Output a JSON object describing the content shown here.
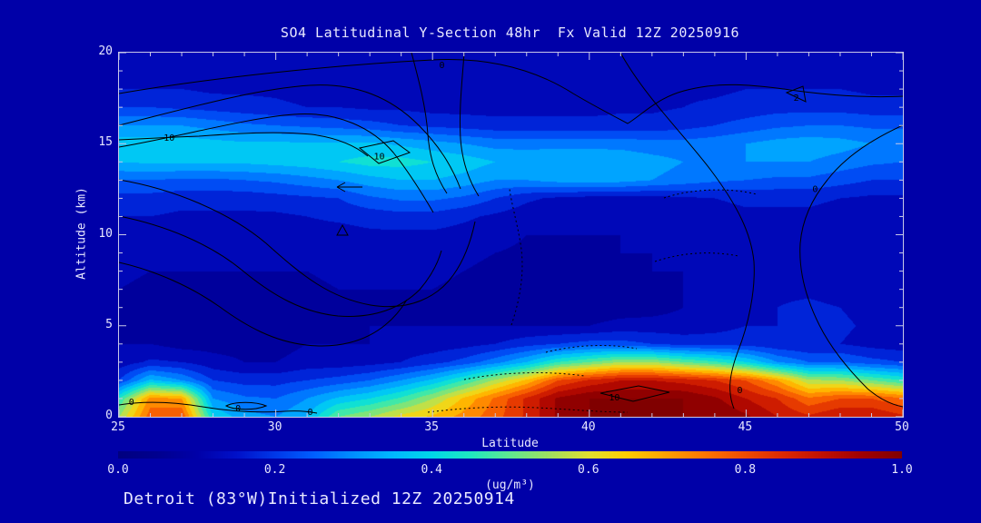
{
  "title": "SO4 Latitudinal Y-Section 48hr  Fx Valid 12Z 20250916",
  "footer": "Detroit (83°W)Initialized 12Z 20250914",
  "axes": {
    "x_label": "Latitude",
    "y_label": "Altitude (km)",
    "x_ticks": [
      25,
      30,
      35,
      40,
      45,
      50
    ],
    "x_minor_step": 1,
    "y_ticks": [
      0,
      5,
      10,
      15,
      20
    ],
    "y_minor_step": 1,
    "frame_color": "#c8c8e8",
    "text_color": "#e8e8ff"
  },
  "colorbar": {
    "label": "(ug/m³)",
    "tick_labels": [
      "0.0",
      "0.2",
      "0.4",
      "0.6",
      "0.8",
      "1.0"
    ],
    "stops": [
      {
        "v": 0.0,
        "c": "#000080"
      },
      {
        "v": 0.05,
        "c": "#00008f"
      },
      {
        "v": 0.1,
        "c": "#0000a8"
      },
      {
        "v": 0.15,
        "c": "#0010c8"
      },
      {
        "v": 0.2,
        "c": "#0038e8"
      },
      {
        "v": 0.25,
        "c": "#0060ff"
      },
      {
        "v": 0.3,
        "c": "#0090ff"
      },
      {
        "v": 0.35,
        "c": "#00b8ff"
      },
      {
        "v": 0.4,
        "c": "#00d8e8"
      },
      {
        "v": 0.45,
        "c": "#20e8c0"
      },
      {
        "v": 0.5,
        "c": "#60e890"
      },
      {
        "v": 0.55,
        "c": "#a0e060"
      },
      {
        "v": 0.6,
        "c": "#e0e030"
      },
      {
        "v": 0.65,
        "c": "#ffcc00"
      },
      {
        "v": 0.7,
        "c": "#ffa000"
      },
      {
        "v": 0.75,
        "c": "#ff7400"
      },
      {
        "v": 0.8,
        "c": "#f04c00"
      },
      {
        "v": 0.85,
        "c": "#dc2800"
      },
      {
        "v": 0.9,
        "c": "#c01000"
      },
      {
        "v": 0.95,
        "c": "#a00000"
      },
      {
        "v": 1.0,
        "c": "#800000"
      }
    ]
  },
  "chart_data": {
    "type": "heatmap",
    "title": "SO4 Latitudinal Y-Section 48hr  Fx Valid 12Z 20250916",
    "xlabel": "Latitude",
    "ylabel": "Altitude (km)",
    "units": "ug/m3",
    "xlim": [
      25,
      50
    ],
    "ylim": [
      0,
      20
    ],
    "zlim": [
      0,
      1
    ],
    "band_step": 0.05,
    "x": [
      25,
      26,
      27,
      28,
      29,
      30,
      31,
      32,
      33,
      34,
      35,
      36,
      37,
      38,
      39,
      40,
      41,
      42,
      43,
      44,
      45,
      46,
      47,
      48,
      49,
      50
    ],
    "y": [
      0,
      1,
      2,
      3,
      4,
      5,
      6,
      7,
      8,
      9,
      10,
      11,
      12,
      13,
      14,
      15,
      16,
      17,
      18,
      19,
      20
    ],
    "values": [
      [
        0.55,
        0.78,
        0.8,
        0.4,
        0.32,
        0.3,
        0.35,
        0.5,
        0.55,
        0.62,
        0.66,
        0.72,
        0.78,
        0.86,
        0.96,
        1.0,
        1.0,
        1.0,
        1.0,
        1.0,
        0.96,
        0.9,
        0.86,
        0.9,
        0.9,
        0.86
      ],
      [
        0.45,
        0.72,
        0.7,
        0.3,
        0.26,
        0.25,
        0.3,
        0.36,
        0.4,
        0.46,
        0.55,
        0.66,
        0.76,
        0.86,
        0.96,
        1.0,
        1.0,
        1.0,
        1.0,
        0.96,
        0.9,
        0.85,
        0.76,
        0.8,
        0.8,
        0.76
      ],
      [
        0.2,
        0.36,
        0.3,
        0.2,
        0.18,
        0.18,
        0.2,
        0.22,
        0.25,
        0.3,
        0.36,
        0.45,
        0.56,
        0.66,
        0.8,
        0.86,
        0.9,
        0.9,
        0.88,
        0.85,
        0.8,
        0.7,
        0.56,
        0.55,
        0.5,
        0.45
      ],
      [
        0.12,
        0.16,
        0.15,
        0.12,
        0.1,
        0.1,
        0.12,
        0.12,
        0.13,
        0.15,
        0.18,
        0.22,
        0.28,
        0.35,
        0.45,
        0.5,
        0.55,
        0.55,
        0.5,
        0.46,
        0.4,
        0.3,
        0.25,
        0.25,
        0.22,
        0.2
      ],
      [
        0.1,
        0.1,
        0.08,
        0.08,
        0.08,
        0.08,
        0.1,
        0.1,
        0.1,
        0.12,
        0.12,
        0.13,
        0.15,
        0.18,
        0.2,
        0.22,
        0.22,
        0.2,
        0.18,
        0.18,
        0.18,
        0.16,
        0.15,
        0.15,
        0.13,
        0.12
      ],
      [
        0.1,
        0.08,
        0.06,
        0.06,
        0.06,
        0.07,
        0.08,
        0.09,
        0.1,
        0.1,
        0.1,
        0.1,
        0.1,
        0.1,
        0.1,
        0.1,
        0.12,
        0.12,
        0.12,
        0.13,
        0.15,
        0.15,
        0.16,
        0.16,
        0.14,
        0.12
      ],
      [
        0.1,
        0.08,
        0.07,
        0.06,
        0.06,
        0.07,
        0.08,
        0.09,
        0.09,
        0.09,
        0.09,
        0.08,
        0.07,
        0.06,
        0.06,
        0.06,
        0.07,
        0.08,
        0.1,
        0.12,
        0.14,
        0.15,
        0.16,
        0.15,
        0.13,
        0.12
      ],
      [
        0.1,
        0.09,
        0.08,
        0.08,
        0.08,
        0.08,
        0.09,
        0.1,
        0.1,
        0.1,
        0.1,
        0.09,
        0.08,
        0.07,
        0.07,
        0.08,
        0.08,
        0.09,
        0.1,
        0.12,
        0.13,
        0.14,
        0.14,
        0.13,
        0.12,
        0.11
      ],
      [
        0.11,
        0.1,
        0.1,
        0.1,
        0.1,
        0.1,
        0.1,
        0.11,
        0.11,
        0.11,
        0.11,
        0.1,
        0.09,
        0.08,
        0.08,
        0.09,
        0.09,
        0.1,
        0.1,
        0.11,
        0.12,
        0.13,
        0.13,
        0.12,
        0.12,
        0.11
      ],
      [
        0.12,
        0.12,
        0.11,
        0.11,
        0.11,
        0.11,
        0.12,
        0.12,
        0.12,
        0.12,
        0.12,
        0.11,
        0.1,
        0.09,
        0.09,
        0.09,
        0.1,
        0.1,
        0.11,
        0.11,
        0.12,
        0.12,
        0.12,
        0.12,
        0.12,
        0.11
      ],
      [
        0.13,
        0.13,
        0.12,
        0.12,
        0.12,
        0.12,
        0.13,
        0.13,
        0.14,
        0.14,
        0.14,
        0.13,
        0.12,
        0.1,
        0.1,
        0.1,
        0.1,
        0.1,
        0.11,
        0.12,
        0.13,
        0.13,
        0.13,
        0.12,
        0.12,
        0.12
      ],
      [
        0.15,
        0.15,
        0.14,
        0.14,
        0.14,
        0.14,
        0.15,
        0.16,
        0.17,
        0.18,
        0.18,
        0.16,
        0.14,
        0.12,
        0.11,
        0.11,
        0.11,
        0.11,
        0.12,
        0.13,
        0.14,
        0.14,
        0.14,
        0.13,
        0.13,
        0.13
      ],
      [
        0.18,
        0.18,
        0.17,
        0.17,
        0.17,
        0.18,
        0.19,
        0.2,
        0.24,
        0.26,
        0.26,
        0.24,
        0.2,
        0.16,
        0.14,
        0.13,
        0.13,
        0.13,
        0.14,
        0.15,
        0.16,
        0.16,
        0.16,
        0.15,
        0.14,
        0.14
      ],
      [
        0.25,
        0.25,
        0.24,
        0.24,
        0.25,
        0.26,
        0.28,
        0.3,
        0.33,
        0.35,
        0.35,
        0.33,
        0.3,
        0.3,
        0.32,
        0.33,
        0.32,
        0.3,
        0.28,
        0.26,
        0.25,
        0.24,
        0.24,
        0.22,
        0.2,
        0.2
      ],
      [
        0.35,
        0.36,
        0.36,
        0.36,
        0.36,
        0.37,
        0.38,
        0.4,
        0.42,
        0.42,
        0.4,
        0.38,
        0.35,
        0.34,
        0.35,
        0.35,
        0.34,
        0.32,
        0.3,
        0.3,
        0.3,
        0.3,
        0.3,
        0.28,
        0.26,
        0.25
      ],
      [
        0.38,
        0.38,
        0.38,
        0.37,
        0.36,
        0.36,
        0.36,
        0.36,
        0.36,
        0.34,
        0.32,
        0.3,
        0.28,
        0.28,
        0.28,
        0.28,
        0.28,
        0.27,
        0.27,
        0.28,
        0.3,
        0.32,
        0.33,
        0.32,
        0.3,
        0.3
      ],
      [
        0.3,
        0.3,
        0.3,
        0.28,
        0.26,
        0.25,
        0.24,
        0.23,
        0.22,
        0.2,
        0.19,
        0.18,
        0.17,
        0.17,
        0.17,
        0.17,
        0.17,
        0.17,
        0.18,
        0.2,
        0.22,
        0.24,
        0.25,
        0.25,
        0.24,
        0.24
      ],
      [
        0.2,
        0.2,
        0.19,
        0.18,
        0.17,
        0.16,
        0.15,
        0.15,
        0.14,
        0.14,
        0.13,
        0.13,
        0.13,
        0.13,
        0.13,
        0.13,
        0.14,
        0.14,
        0.15,
        0.16,
        0.17,
        0.18,
        0.18,
        0.18,
        0.17,
        0.17
      ],
      [
        0.15,
        0.15,
        0.15,
        0.14,
        0.14,
        0.14,
        0.13,
        0.13,
        0.13,
        0.13,
        0.13,
        0.13,
        0.13,
        0.13,
        0.13,
        0.13,
        0.13,
        0.13,
        0.14,
        0.14,
        0.15,
        0.15,
        0.15,
        0.15,
        0.14,
        0.14
      ],
      [
        0.12,
        0.12,
        0.12,
        0.12,
        0.12,
        0.12,
        0.12,
        0.12,
        0.12,
        0.12,
        0.12,
        0.12,
        0.12,
        0.12,
        0.12,
        0.12,
        0.12,
        0.12,
        0.12,
        0.12,
        0.13,
        0.13,
        0.13,
        0.13,
        0.12,
        0.12
      ],
      [
        0.1,
        0.1,
        0.1,
        0.1,
        0.1,
        0.1,
        0.1,
        0.1,
        0.1,
        0.1,
        0.1,
        0.1,
        0.1,
        0.1,
        0.1,
        0.1,
        0.1,
        0.1,
        0.1,
        0.1,
        0.11,
        0.11,
        0.11,
        0.11,
        0.1,
        0.1
      ]
    ],
    "contour_labels": [
      {
        "text": "0",
        "lat": 35.3,
        "alt": 19.3
      },
      {
        "text": "2",
        "lat": 46.6,
        "alt": 17.5
      },
      {
        "text": "10",
        "lat": 26.6,
        "alt": 15.3
      },
      {
        "text": "10",
        "lat": 33.3,
        "alt": 14.3
      },
      {
        "text": "0",
        "lat": 47.2,
        "alt": 12.5
      },
      {
        "text": "0",
        "lat": 25.4,
        "alt": 0.8
      },
      {
        "text": "0",
        "lat": 28.8,
        "alt": 0.45
      },
      {
        "text": "0",
        "lat": 31.1,
        "alt": 0.25
      },
      {
        "text": "10",
        "lat": 40.8,
        "alt": 1.05
      },
      {
        "text": "0",
        "lat": 44.8,
        "alt": 1.45
      }
    ]
  }
}
